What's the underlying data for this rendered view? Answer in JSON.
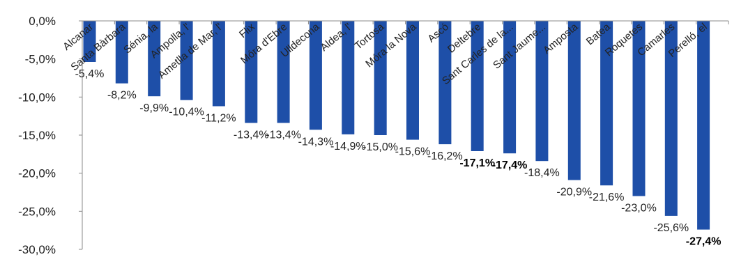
{
  "chart_data": {
    "type": "bar",
    "orientation": "vertical",
    "title": "",
    "xlabel": "",
    "ylabel": "",
    "ylim": [
      -30,
      0
    ],
    "yticks": [
      "0,0%",
      "-5,0%",
      "-10,0%",
      "-15,0%",
      "-20,0%",
      "-25,0%",
      "-30,0%"
    ],
    "grid": false,
    "legend": "none",
    "bar_color": "#1e4fa8",
    "categories": [
      "Alcanar",
      "Santa Bàrbara",
      "Sénia, la",
      "Ampolla, l'",
      "Ametlla de Mar, l'",
      "Flix",
      "Móra d'Ebre",
      "Ulldecona",
      "Aldea, l'",
      "Tortosa",
      "Móra la Nova",
      "Ascó",
      "Deltebre",
      "Sant Carles de la...",
      "Sant Jaume...",
      "Amposta",
      "Batea",
      "Roquetes",
      "Camarles",
      "Perelló, el"
    ],
    "values": [
      -5.4,
      -8.2,
      -9.9,
      -10.4,
      -11.2,
      -13.4,
      -13.4,
      -14.3,
      -14.9,
      -15.0,
      -15.6,
      -16.2,
      -17.1,
      -17.4,
      -18.4,
      -20.9,
      -21.6,
      -23.0,
      -25.6,
      -27.4
    ],
    "labels": [
      "-5,4%",
      "-8,2%",
      "-9,9%",
      "-10,4%",
      "-11,2%",
      "-13,4%",
      "-13,4%",
      "-14,3%",
      "-14,9%",
      "-15,0%",
      "-15,6%",
      "-16,2%",
      "-17,1%",
      "-17,4%",
      "-18,4%",
      "-20,9%",
      "-21,6%",
      "-23,0%",
      "-25,6%",
      "-27,4%"
    ],
    "bold_labels": [
      "-17,1%",
      "-17,4%",
      "-27,4%"
    ]
  }
}
